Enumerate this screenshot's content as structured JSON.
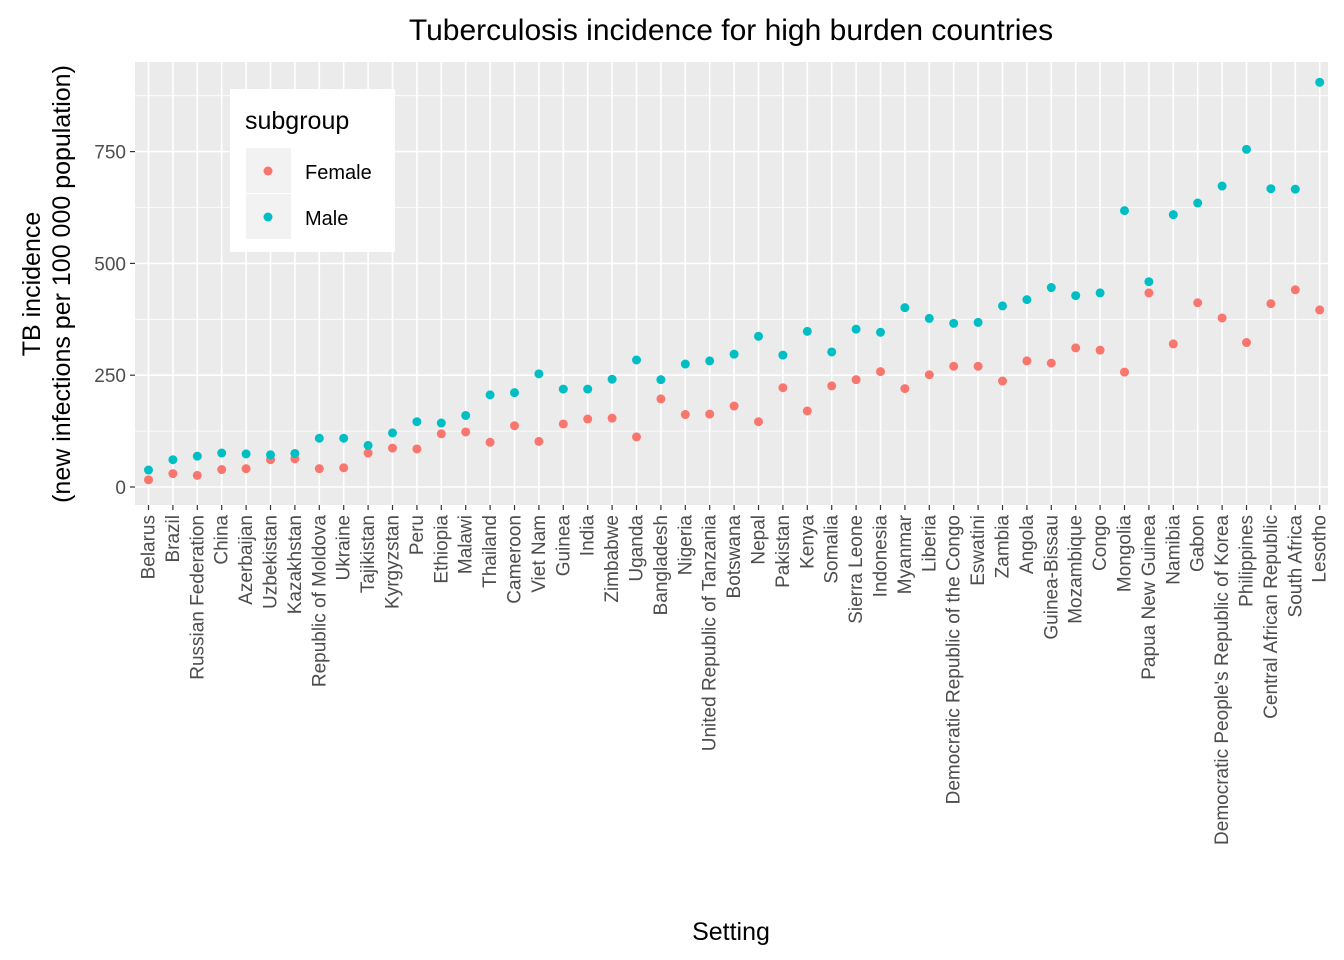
{
  "chart_data": {
    "type": "scatter",
    "title": "Tuberculosis incidence for high burden countries",
    "xlabel": "Setting",
    "ylabel_lines": [
      "TB incidence",
      "(new infections per 100 000 population)"
    ],
    "ylim": [
      -30,
      950
    ],
    "yticks": [
      0,
      250,
      500,
      750
    ],
    "ytick_labels": [
      "0",
      "250",
      "500",
      "750"
    ],
    "grid": true,
    "legend": {
      "title": "subgroup",
      "placement": "top-left inside"
    },
    "categories": [
      "Belarus",
      "Brazil",
      "Russian Federation",
      "China",
      "Azerbaijan",
      "Uzbekistan",
      "Kazakhstan",
      "Republic of Moldova",
      "Ukraine",
      "Tajikistan",
      "Kyrgyzstan",
      "Peru",
      "Ethiopia",
      "Malawi",
      "Thailand",
      "Cameroon",
      "Viet Nam",
      "Guinea",
      "India",
      "Zimbabwe",
      "Uganda",
      "Bangladesh",
      "Nigeria",
      "United Republic of Tanzania",
      "Botswana",
      "Nepal",
      "Pakistan",
      "Kenya",
      "Somalia",
      "Sierra Leone",
      "Indonesia",
      "Myanmar",
      "Liberia",
      "Democratic Republic of the Congo",
      "Eswatini",
      "Zambia",
      "Angola",
      "Guinea-Bissau",
      "Mozambique",
      "Congo",
      "Mongolia",
      "Papua New Guinea",
      "Namibia",
      "Gabon",
      "Democratic People's Republic of Korea",
      "Philippines",
      "Central African Republic",
      "South Africa",
      "Lesotho"
    ],
    "series": [
      {
        "name": "Female",
        "color": "#F8766D",
        "values": [
          16,
          30,
          26,
          39,
          41,
          61,
          63,
          41,
          43,
          76,
          87,
          85,
          119,
          123,
          100,
          137,
          102,
          141,
          152,
          154,
          112,
          197,
          162,
          163,
          181,
          146,
          222,
          170,
          226,
          240,
          258,
          220,
          251,
          270,
          270,
          237,
          282,
          277,
          311,
          306,
          257,
          434,
          320,
          412,
          378,
          323,
          410,
          441,
          396
        ]
      },
      {
        "name": "Male",
        "color": "#00BFC4",
        "values": [
          38,
          61,
          69,
          76,
          74,
          72,
          75,
          109,
          109,
          93,
          121,
          146,
          143,
          160,
          206,
          211,
          253,
          219,
          219,
          241,
          284,
          240,
          275,
          282,
          297,
          337,
          295,
          348,
          302,
          353,
          346,
          401,
          377,
          366,
          368,
          405,
          419,
          446,
          428,
          434,
          618,
          459,
          609,
          635,
          673,
          755,
          667,
          666,
          905
        ]
      }
    ]
  }
}
